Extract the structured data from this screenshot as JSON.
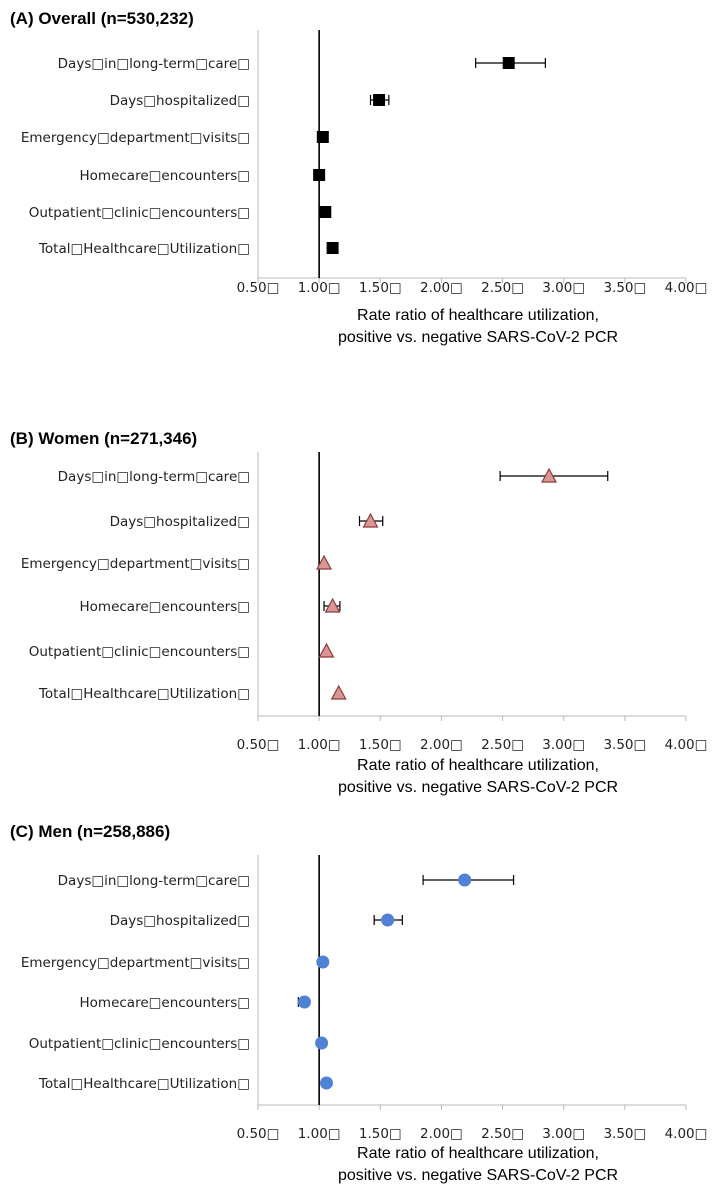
{
  "colors": {
    "overall_marker": "#000000",
    "women_marker_fill": "#d99694",
    "women_marker_stroke": "#8b3a3a",
    "men_marker_fill": "#4f81d4",
    "axis": "#000000",
    "frame": "#b8b8b8"
  },
  "chart_data": [
    {
      "type": "scatter",
      "title": "(A) Overall (n=530,232)",
      "marker": "square",
      "categories": [
        "Days□in□long-term□care□",
        "Days□hospitalized□",
        "Emergency□department□visits□",
        "Homecare□encounters□",
        "Outpatient□clinic□encounters□",
        "Total□Healthcare□Utilization□"
      ],
      "values": [
        2.55,
        1.49,
        1.03,
        1.0,
        1.05,
        1.11
      ],
      "ci_low": [
        2.28,
        1.42,
        null,
        null,
        null,
        null
      ],
      "ci_high": [
        2.85,
        1.57,
        null,
        null,
        null,
        null
      ],
      "xlim": [
        0.5,
        4.0
      ],
      "reference_line": 1.0,
      "xticks": [
        "0.50□",
        "1.00□",
        "1.50□",
        "2.00□",
        "2.50□",
        "3.00□",
        "3.50□",
        "4.00□"
      ],
      "xlabel": [
        "Rate ratio of healthcare utilization,",
        "positive vs. negative SARS-CoV-2 PCR"
      ]
    },
    {
      "type": "scatter",
      "title": "(B) Women (n=271,346)",
      "marker": "triangle",
      "categories": [
        "Days□in□long-term□care□",
        "Days□hospitalized□",
        "Emergency□department□visits□",
        "Homecare□encounters□",
        "Outpatient□clinic□encounters□",
        "Total□Healthcare□Utilization□"
      ],
      "values": [
        2.88,
        1.42,
        1.04,
        1.11,
        1.06,
        1.16
      ],
      "ci_low": [
        2.48,
        1.33,
        null,
        1.04,
        null,
        null
      ],
      "ci_high": [
        3.36,
        1.52,
        null,
        1.17,
        null,
        null
      ],
      "xlim": [
        0.5,
        4.0
      ],
      "reference_line": 1.0,
      "xticks": [
        "0.50□",
        "1.00□",
        "1.50□",
        "2.00□",
        "2.50□",
        "3.00□",
        "3.50□",
        "4.00□"
      ],
      "xlabel": [
        "Rate ratio of healthcare utilization,",
        "positive vs. negative SARS-CoV-2 PCR"
      ]
    },
    {
      "type": "scatter",
      "title": "(C) Men (n=258,886)",
      "marker": "circle",
      "categories": [
        "Days□in□long-term□care□",
        "Days□hospitalized□",
        "Emergency□department□visits□",
        "Homecare□encounters□",
        "Outpatient□clinic□encounters□",
        "Total□Healthcare□Utilization□"
      ],
      "values": [
        2.19,
        1.56,
        1.03,
        0.88,
        1.02,
        1.06
      ],
      "ci_low": [
        1.85,
        1.45,
        null,
        0.83,
        null,
        null
      ],
      "ci_high": [
        2.59,
        1.68,
        null,
        null,
        null,
        null
      ],
      "xlim": [
        0.5,
        4.0
      ],
      "reference_line": 1.0,
      "xticks": [
        "0.50□",
        "1.00□",
        "1.50□",
        "2.00□",
        "2.50□",
        "3.00□",
        "3.50□",
        "4.00□"
      ],
      "xlabel": [
        "Rate ratio of healthcare utilization,",
        "positive vs. negative SARS-CoV-2 PCR"
      ]
    }
  ]
}
